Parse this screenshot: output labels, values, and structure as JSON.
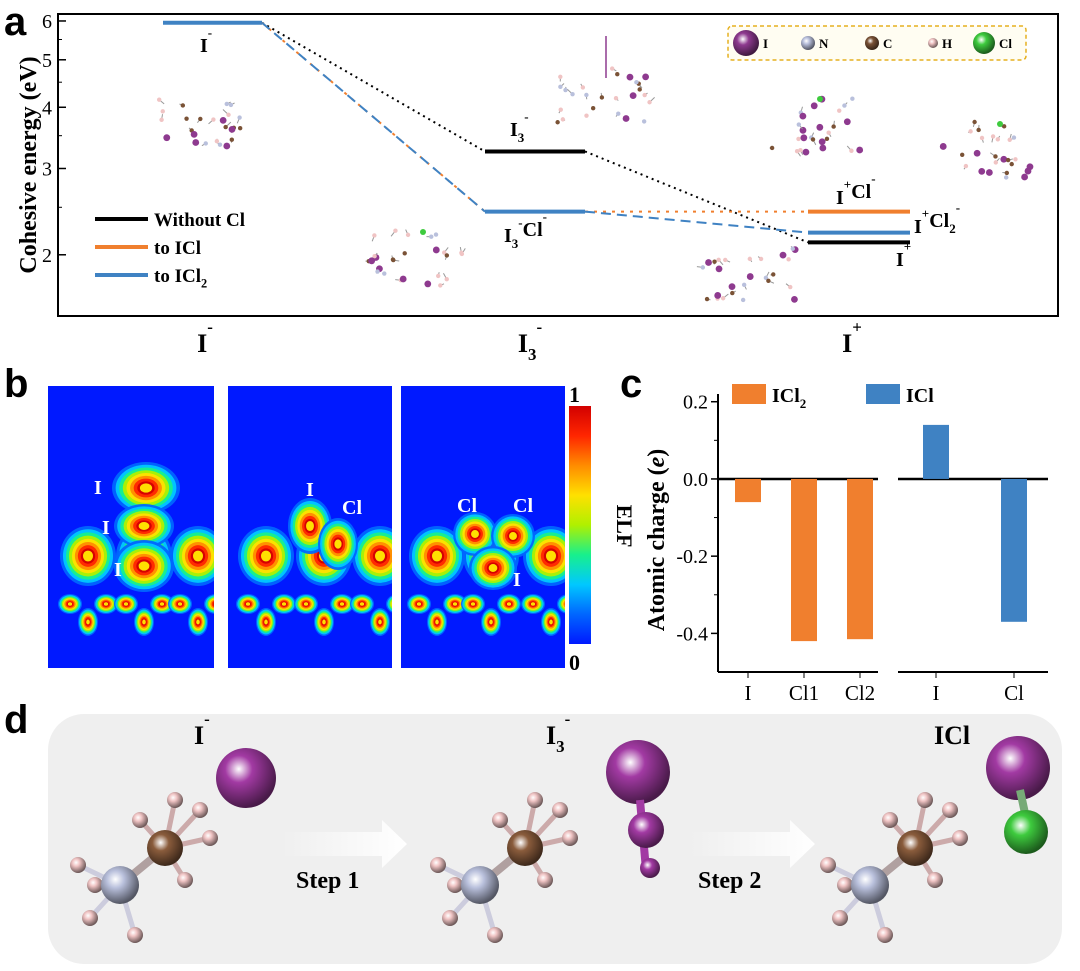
{
  "panels": {
    "a": "a",
    "b": "b",
    "c": "c",
    "d": "d"
  },
  "chart_data": [
    {
      "type": "energy-level-diagram",
      "panel": "a",
      "ylabel": "Cohesive energy (eV)",
      "yscale": "log",
      "ylim": [
        1.5,
        6.2
      ],
      "yticks": [
        "2",
        "3",
        "4",
        "5",
        "6"
      ],
      "categories": [
        "I⁻",
        "I₃⁻",
        "I⁺"
      ],
      "category_labels": [
        {
          "base": "I",
          "sub": "",
          "sup": "-"
        },
        {
          "base": "I",
          "sub": "3",
          "sup": "-"
        },
        {
          "base": "I",
          "sub": "",
          "sup": "+"
        }
      ],
      "series": [
        {
          "name": "Without Cl",
          "color": "#000000",
          "values": [
            5.95,
            3.25,
            2.12
          ],
          "dash": "dotted"
        },
        {
          "name": "to ICl",
          "color": "#f07f2e",
          "values": [
            5.95,
            2.45,
            2.45
          ],
          "dash": "dashed"
        },
        {
          "name": "to ICl2",
          "color": "#3f82c3",
          "values": [
            5.95,
            2.45,
            2.22
          ],
          "dash": "dashed"
        }
      ],
      "legend": [
        {
          "base": "Without Cl",
          "sub": "",
          "color": "#000000"
        },
        {
          "base": "to ICl",
          "sub": "",
          "color": "#f07f2e"
        },
        {
          "base": "to ICl",
          "sub": "2",
          "color": "#3f82c3"
        }
      ],
      "level_labels": [
        {
          "base": "I",
          "sup": "-"
        },
        {
          "base": "I",
          "sub": "3",
          "sup": "-"
        },
        {
          "base": "I",
          "sub": "3",
          "sup": "-",
          "tail": "Cl",
          "tailsup": "-"
        },
        {
          "base": "I",
          "sup": "+",
          "tail": "Cl",
          "tailsup": "-"
        },
        {
          "base": "I",
          "sup": "+",
          "tail": "Cl",
          "tailsub": "2",
          "tailsup": "-"
        },
        {
          "base": "I",
          "sup": "+"
        }
      ],
      "atom_legend": [
        "I",
        "N",
        "C",
        "H",
        "Cl"
      ],
      "atom_colors": [
        "#8e3a8f",
        "#b9c0dc",
        "#7a5236",
        "#f0c4c4",
        "#3ecb3e"
      ]
    },
    {
      "type": "heatmap",
      "panel": "b",
      "title": "ELF",
      "colorbar": {
        "min": "0",
        "max": "1",
        "label": "ELF"
      },
      "maps": [
        {
          "labels": [
            "I",
            "I",
            "I"
          ]
        },
        {
          "labels": [
            "I",
            "Cl"
          ]
        },
        {
          "labels": [
            "Cl",
            "Cl",
            "I"
          ]
        }
      ]
    },
    {
      "type": "bar",
      "panel": "c",
      "ylabel": "Atomic charge (e)",
      "ylim": [
        -0.5,
        0.22
      ],
      "yticks": [
        "0.2",
        "0.0",
        "-0.2",
        "-0.4"
      ],
      "series": [
        {
          "name": "ICl2",
          "color": "#f07f2e",
          "categories": [
            "I",
            "Cl1",
            "Cl2"
          ],
          "values": [
            -0.06,
            -0.42,
            -0.415
          ]
        },
        {
          "name": "ICl",
          "color": "#3f82c3",
          "categories": [
            "I",
            "Cl"
          ],
          "values": [
            0.14,
            -0.37
          ]
        }
      ],
      "legend": [
        {
          "base": "ICl",
          "sub": "2",
          "color": "#f07f2e"
        },
        {
          "base": "ICl",
          "sub": "",
          "color": "#3f82c3"
        }
      ]
    }
  ],
  "panel_d": {
    "labels": [
      {
        "base": "I",
        "sub": "",
        "sup": "-"
      },
      {
        "base": "I",
        "sub": "3",
        "sup": "-"
      },
      {
        "base": "ICl",
        "sub": "",
        "sup": ""
      }
    ],
    "steps": [
      "Step 1",
      "Step 2"
    ]
  }
}
